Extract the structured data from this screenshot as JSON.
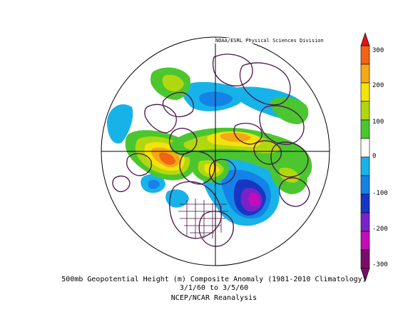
{
  "credit": "NOAA/ESRL Physical Sciences Division",
  "caption": {
    "line1": "500mb Geopotential Height (m) Composite Anomaly (1981-2010 Climatology)",
    "line2": "3/1/60 to 3/5/60",
    "line3": "NCEP/NCAR Reanalysis"
  },
  "colorbar": {
    "ticks": [
      "300",
      "200",
      "100",
      "0",
      "-100",
      "-200",
      "-300"
    ],
    "colors": {
      "300": "#e0141a",
      "250": "#f06214",
      "200": "#f5a816",
      "150": "#f2e30c",
      "100": "#b1d80f",
      "50": "#4cc62e",
      "0": "#ffffff",
      "-50": "#17b3e8",
      "-100": "#1482e6",
      "-150": "#1736c4",
      "-200": "#7a22c8",
      "-250": "#c50cb9",
      "-300": "#7a0d6a"
    }
  }
}
